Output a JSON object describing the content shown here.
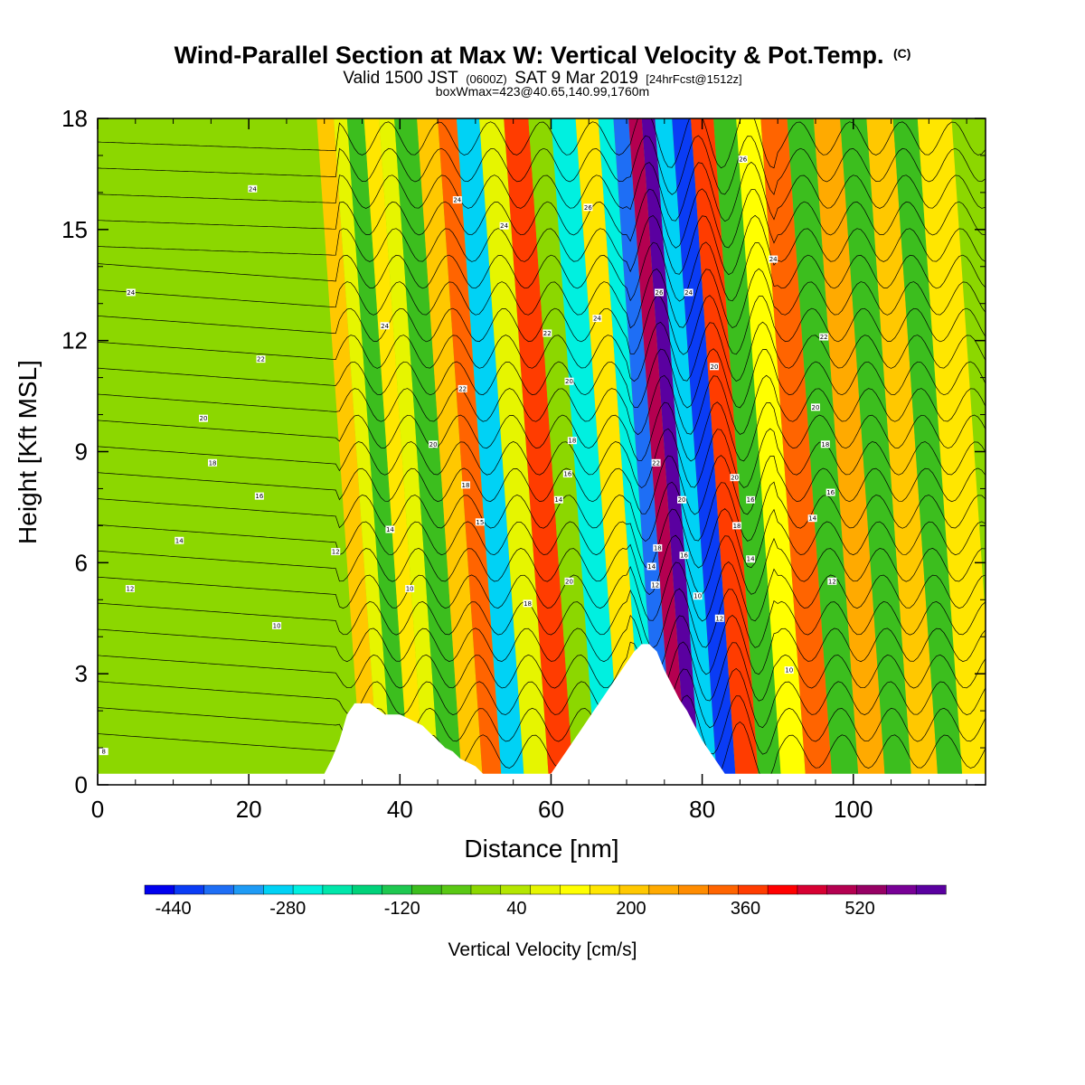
{
  "title": {
    "main": "Wind-Parallel Section at Max W: Vertical Velocity & Pot.Temp.",
    "main_mark": "(C)",
    "valid_prefix": "Valid 1500 JST",
    "valid_zulu": "(0600Z)",
    "valid_date": "SAT 9 Mar 2019",
    "valid_fcst": "[24hrFcst@1512z]",
    "box": "boxWmax=423@40.65,140.99,1760m"
  },
  "chart_data": {
    "type": "heatmap",
    "title": "Wind-Parallel Section at Max W: Vertical Velocity & Pot.Temp.",
    "xlabel": "Distance [nm]",
    "ylabel": "Height [Kft MSL]",
    "xlim": [
      0,
      117.5
    ],
    "ylim": [
      0,
      18
    ],
    "xticks": [
      0,
      20,
      40,
      60,
      80,
      100
    ],
    "yticks": [
      0,
      3,
      6,
      9,
      12,
      15,
      18
    ],
    "x_tick_labels": [
      "0",
      "20",
      "40",
      "60",
      "80",
      "100"
    ],
    "y_tick_labels": [
      "0",
      "3",
      "6",
      "9",
      "12",
      "15",
      "18"
    ],
    "fill_variable": "Vertical Velocity [cm/s]",
    "contour_variable": "Potential Temperature (C)",
    "terrain_profile": {
      "x": [
        0,
        30,
        31,
        32,
        33,
        34,
        36,
        38,
        40,
        41,
        43,
        44,
        45,
        46,
        47,
        48,
        50,
        51,
        55,
        60,
        61,
        62,
        63,
        64,
        65,
        66,
        67,
        68,
        69,
        70,
        71,
        72,
        73,
        74,
        75,
        76,
        77,
        78,
        79,
        80,
        81,
        82,
        83,
        84,
        117.5
      ],
      "height": [
        0.3,
        0.3,
        0.7,
        1.2,
        1.9,
        2.2,
        2.2,
        1.9,
        1.9,
        1.8,
        1.6,
        1.4,
        1.2,
        1.0,
        0.9,
        0.7,
        0.5,
        0.3,
        0.3,
        0.3,
        0.6,
        0.9,
        1.2,
        1.5,
        1.8,
        2.1,
        2.4,
        2.7,
        3.0,
        3.3,
        3.6,
        3.8,
        3.8,
        3.6,
        3.1,
        2.7,
        2.3,
        2.0,
        1.6,
        1.2,
        0.9,
        0.6,
        0.3,
        0.3,
        0.3
      ]
    },
    "colorbar": {
      "label": "Vertical Velocity [cm/s]",
      "min": -480,
      "max": 640,
      "step": 40,
      "tick_values": [
        -440,
        -280,
        -120,
        40,
        200,
        360,
        520
      ],
      "tick_labels": [
        "-440",
        "-280",
        "-120",
        "40",
        "200",
        "360",
        "520"
      ],
      "colors": [
        "#0000ee",
        "#0a3cf5",
        "#1e6ef5",
        "#1e9bf5",
        "#00d2f5",
        "#00f0e0",
        "#00e6aa",
        "#00d27a",
        "#1ec850",
        "#3cbe1e",
        "#5ac814",
        "#8cd700",
        "#b4e600",
        "#e6f500",
        "#ffff00",
        "#ffe600",
        "#ffc800",
        "#ffaa00",
        "#ff8c00",
        "#ff6400",
        "#ff3c00",
        "#ff0000",
        "#d70032",
        "#b40050",
        "#960064",
        "#780096",
        "#5a00a0"
      ]
    },
    "wave_regions": [
      {
        "x": 36.5,
        "value": 160
      },
      {
        "x": 38,
        "value": 40
      },
      {
        "x": 40,
        "value": -120
      },
      {
        "x": 42.5,
        "value": 120
      },
      {
        "x": 44,
        "value": 40
      },
      {
        "x": 46.5,
        "value": -120
      },
      {
        "x": 50,
        "value": 180
      },
      {
        "x": 52,
        "value": 280
      },
      {
        "x": 55,
        "value": -300
      },
      {
        "x": 58,
        "value": 40
      },
      {
        "x": 61.5,
        "value": 320
      },
      {
        "x": 64.5,
        "value": -40
      },
      {
        "x": 67.5,
        "value": -260
      },
      {
        "x": 71,
        "value": 120
      },
      {
        "x": 73.5,
        "value": -280
      },
      {
        "x": 75,
        "value": -400
      },
      {
        "x": 77.5,
        "value": 440
      },
      {
        "x": 78.5,
        "value": 600
      },
      {
        "x": 81,
        "value": -320
      },
      {
        "x": 83,
        "value": -420
      },
      {
        "x": 86,
        "value": 320
      },
      {
        "x": 89,
        "value": -120
      },
      {
        "x": 92,
        "value": 80
      },
      {
        "x": 95.5,
        "value": 280
      },
      {
        "x": 99,
        "value": -120
      },
      {
        "x": 102.5,
        "value": 200
      },
      {
        "x": 106,
        "value": -120
      },
      {
        "x": 109.5,
        "value": 160
      },
      {
        "x": 113,
        "value": -120
      },
      {
        "x": 116,
        "value": 120
      }
    ],
    "contour_labels": [
      {
        "x": 0.8,
        "y": 0.9,
        "text": "8"
      },
      {
        "x": 4.3,
        "y": 5.3,
        "text": "12"
      },
      {
        "x": 10.8,
        "y": 6.6,
        "text": "14"
      },
      {
        "x": 21.4,
        "y": 7.8,
        "text": "16"
      },
      {
        "x": 15.2,
        "y": 8.7,
        "text": "18"
      },
      {
        "x": 14,
        "y": 9.9,
        "text": "20"
      },
      {
        "x": 21.6,
        "y": 11.5,
        "text": "22"
      },
      {
        "x": 4.4,
        "y": 13.3,
        "text": "24"
      },
      {
        "x": 20.5,
        "y": 16.1,
        "text": "24"
      },
      {
        "x": 23.7,
        "y": 4.3,
        "text": "10"
      },
      {
        "x": 31.5,
        "y": 6.3,
        "text": "12"
      },
      {
        "x": 38.7,
        "y": 6.9,
        "text": "14"
      },
      {
        "x": 41.3,
        "y": 5.3,
        "text": "10"
      },
      {
        "x": 44.4,
        "y": 9.2,
        "text": "20"
      },
      {
        "x": 48.7,
        "y": 8.1,
        "text": "18"
      },
      {
        "x": 50.6,
        "y": 7.1,
        "text": "15"
      },
      {
        "x": 48.3,
        "y": 10.7,
        "text": "22"
      },
      {
        "x": 38,
        "y": 12.4,
        "text": "24"
      },
      {
        "x": 47.6,
        "y": 15.8,
        "text": "24"
      },
      {
        "x": 53.8,
        "y": 15.1,
        "text": "24"
      },
      {
        "x": 56.9,
        "y": 4.9,
        "text": "18"
      },
      {
        "x": 59.5,
        "y": 12.2,
        "text": "22"
      },
      {
        "x": 62.4,
        "y": 10.9,
        "text": "20"
      },
      {
        "x": 62.8,
        "y": 9.3,
        "text": "18"
      },
      {
        "x": 62.2,
        "y": 8.4,
        "text": "16"
      },
      {
        "x": 61,
        "y": 7.7,
        "text": "14"
      },
      {
        "x": 62.4,
        "y": 5.5,
        "text": "20"
      },
      {
        "x": 64.9,
        "y": 15.6,
        "text": "26"
      },
      {
        "x": 66.1,
        "y": 12.6,
        "text": "24"
      },
      {
        "x": 74.3,
        "y": 13.3,
        "text": "26"
      },
      {
        "x": 78.2,
        "y": 13.3,
        "text": "24"
      },
      {
        "x": 73.9,
        "y": 8.7,
        "text": "22"
      },
      {
        "x": 77.3,
        "y": 7.7,
        "text": "20"
      },
      {
        "x": 74.1,
        "y": 6.4,
        "text": "18"
      },
      {
        "x": 73.3,
        "y": 5.9,
        "text": "14"
      },
      {
        "x": 73.8,
        "y": 5.4,
        "text": "12"
      },
      {
        "x": 77.6,
        "y": 6.2,
        "text": "16"
      },
      {
        "x": 79.4,
        "y": 5.1,
        "text": "10"
      },
      {
        "x": 81.6,
        "y": 11.3,
        "text": "20"
      },
      {
        "x": 84.3,
        "y": 8.3,
        "text": "20"
      },
      {
        "x": 86.4,
        "y": 7.7,
        "text": "16"
      },
      {
        "x": 84.6,
        "y": 7,
        "text": "18"
      },
      {
        "x": 86.4,
        "y": 6.1,
        "text": "14"
      },
      {
        "x": 82.3,
        "y": 4.5,
        "text": "12"
      },
      {
        "x": 85.4,
        "y": 16.9,
        "text": "26"
      },
      {
        "x": 89.4,
        "y": 14.2,
        "text": "24"
      },
      {
        "x": 96.1,
        "y": 12.1,
        "text": "22"
      },
      {
        "x": 95,
        "y": 10.2,
        "text": "20"
      },
      {
        "x": 96.3,
        "y": 9.2,
        "text": "18"
      },
      {
        "x": 97,
        "y": 7.9,
        "text": "16"
      },
      {
        "x": 94.6,
        "y": 7.2,
        "text": "14"
      },
      {
        "x": 97.2,
        "y": 5.5,
        "text": "12"
      },
      {
        "x": 91.5,
        "y": 3.1,
        "text": "10"
      }
    ]
  }
}
